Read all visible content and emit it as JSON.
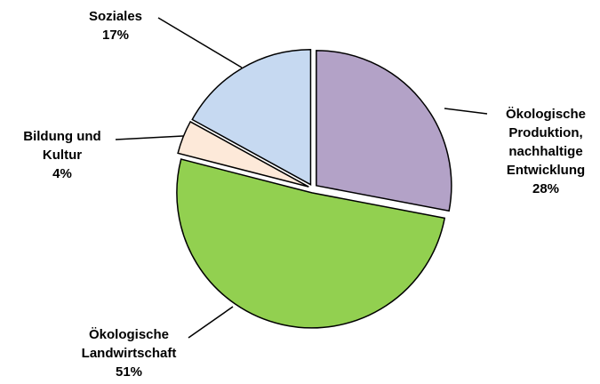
{
  "chart_data": {
    "type": "pie",
    "categories": [
      "Ökologische Produktion, nachhaltige Entwicklung",
      "Ökologische Landwirtschaft",
      "Bildung und Kultur",
      "Soziales"
    ],
    "values": [
      28,
      51,
      4,
      17
    ],
    "value_labels": [
      "28%",
      "51%",
      "4%",
      "17%"
    ],
    "colors": [
      "#b3a2c7",
      "#92d050",
      "#fde9d9",
      "#c6d9f1"
    ]
  }
}
